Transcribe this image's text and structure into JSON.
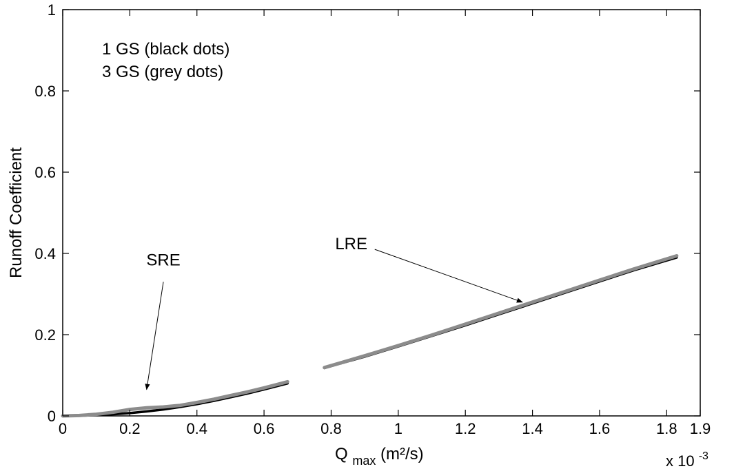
{
  "chart_data": {
    "type": "line",
    "xlabel_main": "Q",
    "xlabel_sub": "max",
    "xlabel_unit": " (m²/s)",
    "ylabel": "Runoff Coefficient",
    "x_multiplier": "x 10",
    "x_multiplier_exp": "-3",
    "xlim": [
      0,
      1.9
    ],
    "ylim": [
      0,
      1
    ],
    "x_ticks": [
      0,
      0.2,
      0.4,
      0.6,
      0.8,
      1,
      1.2,
      1.4,
      1.6,
      1.8,
      1.9
    ],
    "x_tick_labels": [
      "0",
      "0.2",
      "0.4",
      "0.6",
      "0.8",
      "1",
      "1.2",
      "1.4",
      "1.6",
      "1.8",
      "1.9"
    ],
    "y_ticks": [
      0,
      0.2,
      0.4,
      0.6,
      0.8,
      1
    ],
    "y_tick_labels": [
      "0",
      "0.2",
      "0.4",
      "0.6",
      "0.8",
      "1"
    ],
    "grid": false,
    "legend_notes": [
      "1 GS (black dots)",
      "3 GS (grey dots)"
    ],
    "colors": {
      "black_series": "#000000",
      "grey_series": "#8c8c8c",
      "axis": "#000000"
    },
    "series": [
      {
        "name": "1 GS (black dots)",
        "group": "SRE",
        "x": [
          0,
          0.05,
          0.1,
          0.15,
          0.2,
          0.25,
          0.3,
          0.35,
          0.4,
          0.45,
          0.5,
          0.55,
          0.6,
          0.67
        ],
        "y": [
          0,
          0.0005,
          0.002,
          0.004,
          0.007,
          0.011,
          0.016,
          0.022,
          0.029,
          0.037,
          0.046,
          0.055,
          0.065,
          0.08
        ]
      },
      {
        "name": "3 GS (grey dots)",
        "group": "SRE",
        "x": [
          0,
          0.05,
          0.1,
          0.15,
          0.2,
          0.25,
          0.3,
          0.35,
          0.4,
          0.45,
          0.5,
          0.55,
          0.6,
          0.67
        ],
        "y": [
          0,
          0.001,
          0.004,
          0.009,
          0.016,
          0.02,
          0.022,
          0.026,
          0.033,
          0.041,
          0.05,
          0.059,
          0.069,
          0.084
        ]
      },
      {
        "name": "1 GS (black dots)",
        "group": "LRE",
        "x": [
          0.78,
          0.9,
          1.0,
          1.1,
          1.2,
          1.3,
          1.4,
          1.5,
          1.6,
          1.7,
          1.83
        ],
        "y": [
          0.118,
          0.146,
          0.171,
          0.197,
          0.223,
          0.25,
          0.277,
          0.304,
          0.331,
          0.358,
          0.39
        ]
      },
      {
        "name": "3 GS (grey dots)",
        "group": "LRE",
        "x": [
          0.78,
          0.9,
          1.0,
          1.1,
          1.2,
          1.3,
          1.4,
          1.5,
          1.6,
          1.7,
          1.83
        ],
        "y": [
          0.119,
          0.148,
          0.173,
          0.199,
          0.226,
          0.253,
          0.28,
          0.307,
          0.334,
          0.361,
          0.394
        ]
      }
    ],
    "annotations": [
      {
        "text": "SRE",
        "text_at": [
          0.3,
          0.37
        ],
        "arrow_from": [
          0.3,
          0.33
        ],
        "arrow_to": [
          0.25,
          0.065
        ]
      },
      {
        "text": "LRE",
        "text_at": [
          0.86,
          0.41
        ],
        "arrow_from": [
          0.93,
          0.41
        ],
        "arrow_to": [
          1.37,
          0.28
        ]
      }
    ]
  }
}
